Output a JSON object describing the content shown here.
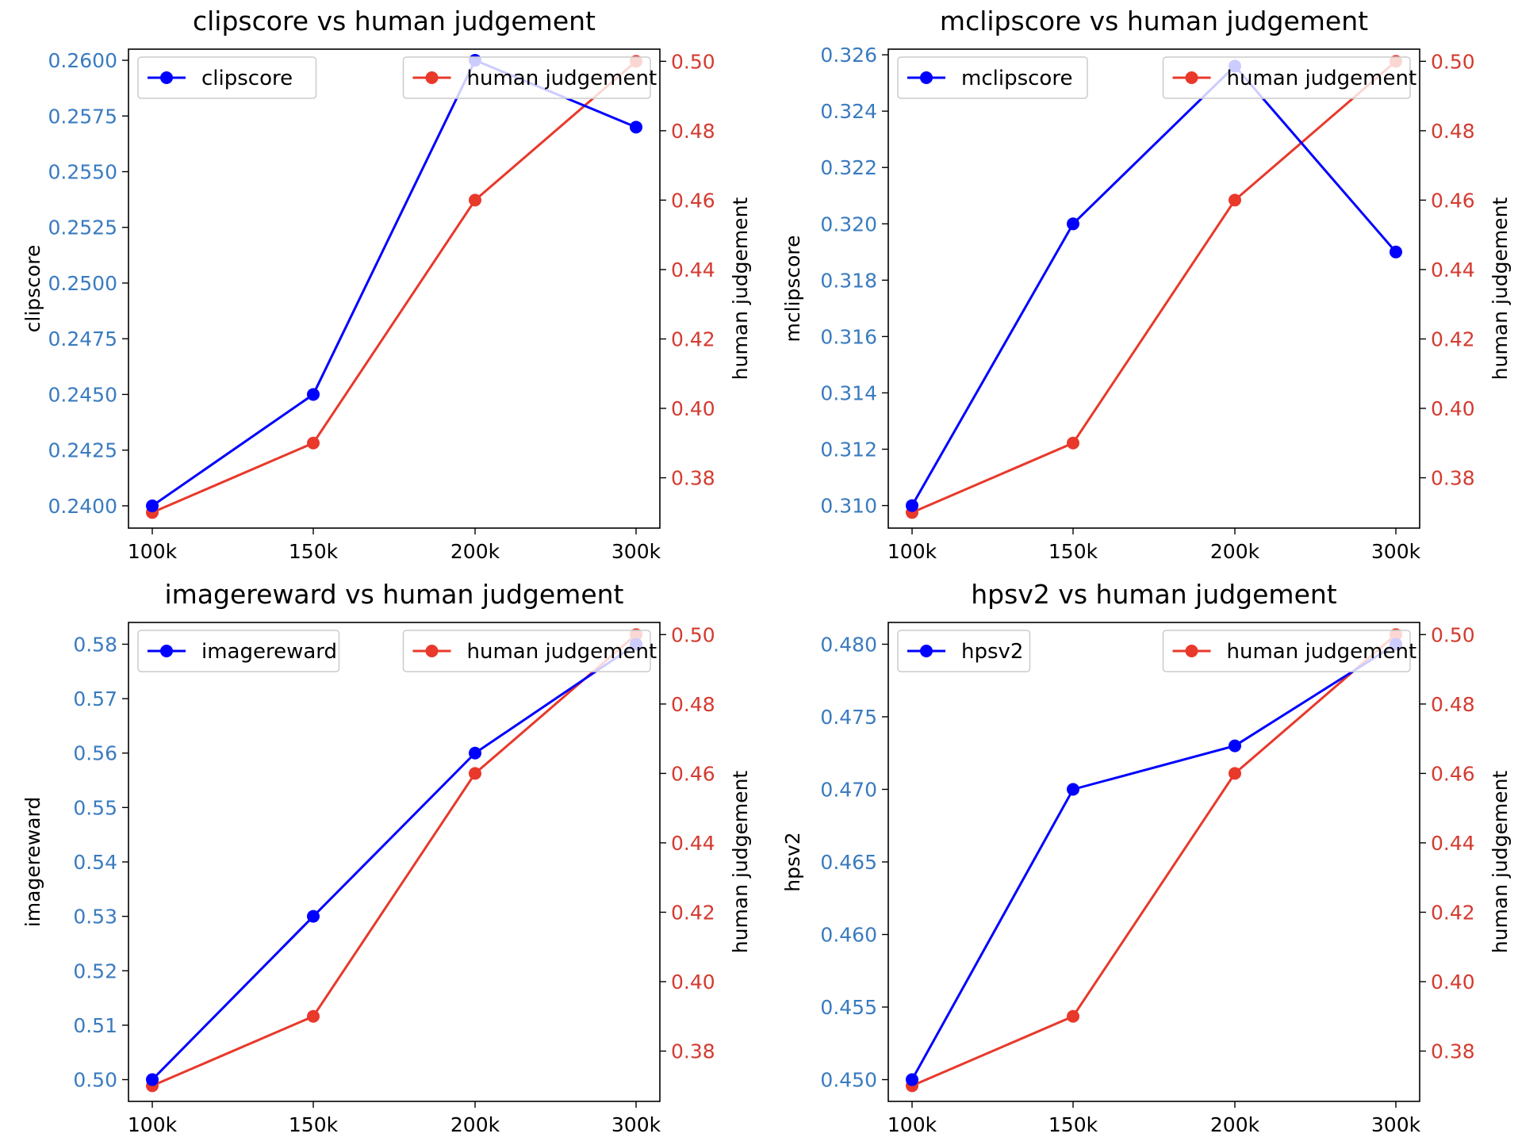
{
  "colors": {
    "series_left": "#0000ff",
    "series_right": "#e8392b",
    "left_tick_text": "#3a7bbf",
    "right_tick_text": "#d43b30",
    "axes": "#000000"
  },
  "chart_data": [
    {
      "type": "line",
      "title": "clipscore vs human judgement",
      "categories": [
        "100k",
        "150k",
        "200k",
        "300k"
      ],
      "ylabel": "clipscore",
      "y2label": "human judgement",
      "ylim": [
        0.239,
        0.2605
      ],
      "y2lim": [
        0.3655,
        0.5035
      ],
      "yticks": [
        "0.2400",
        "0.2425",
        "0.2450",
        "0.2475",
        "0.2500",
        "0.2525",
        "0.2550",
        "0.2575",
        "0.2600"
      ],
      "y2ticks": [
        "0.38",
        "0.40",
        "0.42",
        "0.44",
        "0.46",
        "0.48",
        "0.50"
      ],
      "series": [
        {
          "name": "clipscore",
          "axis": "left",
          "values": [
            0.24,
            0.245,
            0.26,
            0.257
          ]
        },
        {
          "name": "human judgement",
          "axis": "right",
          "values": [
            0.37,
            0.39,
            0.46,
            0.5
          ]
        }
      ],
      "legend": [
        "top-left",
        "top-right"
      ]
    },
    {
      "type": "line",
      "title": "mclipscore vs human judgement",
      "categories": [
        "100k",
        "150k",
        "200k",
        "300k"
      ],
      "ylabel": "mclipscore",
      "y2label": "human judgement",
      "ylim": [
        0.3092,
        0.3262
      ],
      "y2lim": [
        0.3655,
        0.5035
      ],
      "yticks": [
        "0.310",
        "0.312",
        "0.314",
        "0.316",
        "0.318",
        "0.320",
        "0.322",
        "0.324",
        "0.326"
      ],
      "y2ticks": [
        "0.38",
        "0.40",
        "0.42",
        "0.44",
        "0.46",
        "0.48",
        "0.50"
      ],
      "series": [
        {
          "name": "mclipscore",
          "axis": "left",
          "values": [
            0.31,
            0.32,
            0.3256,
            0.319
          ]
        },
        {
          "name": "human judgement",
          "axis": "right",
          "values": [
            0.37,
            0.39,
            0.46,
            0.5
          ]
        }
      ],
      "legend": [
        "top-left",
        "top-right"
      ]
    },
    {
      "type": "line",
      "title": "imagereward vs human judgement",
      "categories": [
        "100k",
        "150k",
        "200k",
        "300k"
      ],
      "ylabel": "imagereward",
      "y2label": "human judgement",
      "ylim": [
        0.496,
        0.584
      ],
      "y2lim": [
        0.3655,
        0.5035
      ],
      "yticks": [
        "0.50",
        "0.51",
        "0.52",
        "0.53",
        "0.54",
        "0.55",
        "0.56",
        "0.57",
        "0.58"
      ],
      "y2ticks": [
        "0.38",
        "0.40",
        "0.42",
        "0.44",
        "0.46",
        "0.48",
        "0.50"
      ],
      "series": [
        {
          "name": "imagereward",
          "axis": "left",
          "values": [
            0.5,
            0.53,
            0.56,
            0.58
          ]
        },
        {
          "name": "human judgement",
          "axis": "right",
          "values": [
            0.37,
            0.39,
            0.46,
            0.5
          ]
        }
      ],
      "legend": [
        "top-left",
        "top-right"
      ]
    },
    {
      "type": "line",
      "title": "hpsv2 vs human judgement",
      "categories": [
        "100k",
        "150k",
        "200k",
        "300k"
      ],
      "ylabel": "hpsv2",
      "y2label": "human judgement",
      "ylim": [
        0.4485,
        0.4815
      ],
      "y2lim": [
        0.3655,
        0.5035
      ],
      "yticks": [
        "0.450",
        "0.455",
        "0.460",
        "0.465",
        "0.470",
        "0.475",
        "0.480"
      ],
      "y2ticks": [
        "0.38",
        "0.40",
        "0.42",
        "0.44",
        "0.46",
        "0.48",
        "0.50"
      ],
      "series": [
        {
          "name": "hpsv2",
          "axis": "left",
          "values": [
            0.45,
            0.47,
            0.473,
            0.48
          ]
        },
        {
          "name": "human judgement",
          "axis": "right",
          "values": [
            0.37,
            0.39,
            0.46,
            0.5
          ]
        }
      ],
      "legend": [
        "top-left",
        "top-right"
      ]
    }
  ]
}
